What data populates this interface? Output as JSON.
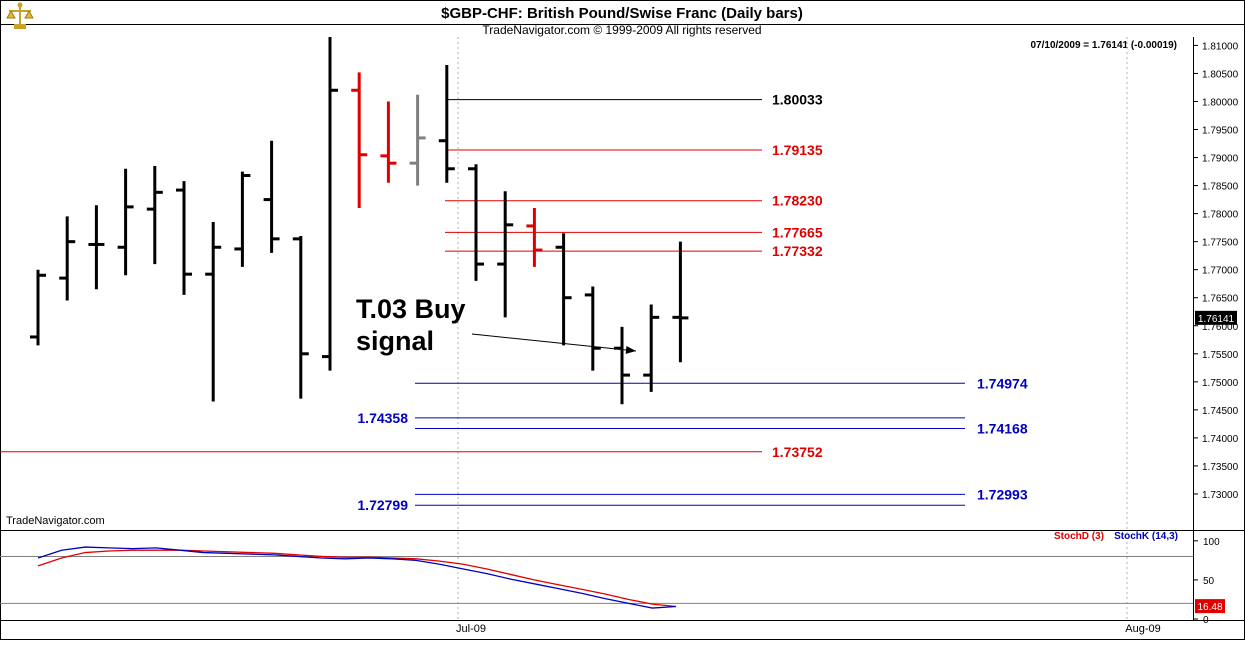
{
  "header": {
    "title": "$GBP-CHF:  British Pound/Swise Franc  (Daily bars)",
    "subtitle": "TradeNavigator.com © 1999-2009 All rights reserved",
    "readout": "07/10/2009 = 1.76141 (-0.00019)",
    "watermark": "TradeNavigator.com",
    "logo_icon": "trophy-scale-icon"
  },
  "colors": {
    "bar_black": "#000000",
    "bar_red": "#e00000",
    "bar_gray": "#808080",
    "level_red": "#e00000",
    "level_blue": "#0000c0",
    "stoch_d": "#e00000",
    "stoch_k": "#0000c0",
    "badge_red": "#e00000"
  },
  "chart_data": [
    {
      "type": "ohlc",
      "title": "$GBP-CHF:  British Pound/Swise Franc  (Daily bars)",
      "ylim": [
        1.725,
        1.8115
      ],
      "y_ticks": [
        "1.81000",
        "1.80500",
        "1.80000",
        "1.79500",
        "1.79000",
        "1.78500",
        "1.78000",
        "1.77500",
        "1.77000",
        "1.76500",
        "1.76000",
        "1.75500",
        "1.75000",
        "1.74500",
        "1.74000",
        "1.73500",
        "1.73000"
      ],
      "x_tick_labels": [
        "Jul-09",
        "Aug-09"
      ],
      "last_price_label": "1.76141",
      "bars": [
        {
          "o": 1.758,
          "h": 1.77,
          "l": 1.7565,
          "c": 1.769,
          "color": "black"
        },
        {
          "o": 1.7685,
          "h": 1.7795,
          "l": 1.7645,
          "c": 1.775,
          "color": "black"
        },
        {
          "o": 1.7745,
          "h": 1.7815,
          "l": 1.7665,
          "c": 1.7745,
          "color": "black"
        },
        {
          "o": 1.774,
          "h": 1.788,
          "l": 1.769,
          "c": 1.7812,
          "color": "black"
        },
        {
          "o": 1.7808,
          "h": 1.7885,
          "l": 1.771,
          "c": 1.7838,
          "color": "black"
        },
        {
          "o": 1.7842,
          "h": 1.7858,
          "l": 1.7655,
          "c": 1.7692,
          "color": "black"
        },
        {
          "o": 1.7692,
          "h": 1.7785,
          "l": 1.7465,
          "c": 1.774,
          "color": "black"
        },
        {
          "o": 1.7737,
          "h": 1.7875,
          "l": 1.7705,
          "c": 1.7868,
          "color": "black"
        },
        {
          "o": 1.7825,
          "h": 1.793,
          "l": 1.773,
          "c": 1.7755,
          "color": "black"
        },
        {
          "o": 1.7755,
          "h": 1.776,
          "l": 1.747,
          "c": 1.755,
          "color": "black"
        },
        {
          "o": 1.7545,
          "h": 1.8115,
          "l": 1.752,
          "c": 1.802,
          "color": "black"
        },
        {
          "o": 1.802,
          "h": 1.8052,
          "l": 1.781,
          "c": 1.7905,
          "color": "red"
        },
        {
          "o": 1.7903,
          "h": 1.8,
          "l": 1.7855,
          "c": 1.789,
          "color": "red"
        },
        {
          "o": 1.789,
          "h": 1.8012,
          "l": 1.785,
          "c": 1.7935,
          "color": "gray"
        },
        {
          "o": 1.793,
          "h": 1.8065,
          "l": 1.7855,
          "c": 1.788,
          "color": "black"
        },
        {
          "o": 1.788,
          "h": 1.7888,
          "l": 1.768,
          "c": 1.771,
          "color": "black"
        },
        {
          "o": 1.771,
          "h": 1.784,
          "l": 1.7615,
          "c": 1.778,
          "color": "black"
        },
        {
          "o": 1.7778,
          "h": 1.781,
          "l": 1.7705,
          "c": 1.7735,
          "color": "red"
        },
        {
          "o": 1.774,
          "h": 1.7765,
          "l": 1.7565,
          "c": 1.765,
          "color": "black"
        },
        {
          "o": 1.7655,
          "h": 1.767,
          "l": 1.752,
          "c": 1.756,
          "color": "black"
        },
        {
          "o": 1.756,
          "h": 1.7598,
          "l": 1.746,
          "c": 1.7512,
          "color": "black"
        },
        {
          "o": 1.7512,
          "h": 1.7638,
          "l": 1.7482,
          "c": 1.7615,
          "color": "black"
        },
        {
          "o": 1.7615,
          "h": 1.775,
          "l": 1.7535,
          "c": 1.7614,
          "color": "black"
        }
      ],
      "levels": [
        {
          "value": 1.80033,
          "label": "1.80033",
          "color": "black",
          "label_side": "right"
        },
        {
          "value": 1.79135,
          "label": "1.79135",
          "color": "red",
          "label_side": "right"
        },
        {
          "value": 1.7823,
          "label": "1.78230",
          "color": "red",
          "label_side": "right"
        },
        {
          "value": 1.77665,
          "label": "1.77665",
          "color": "red",
          "label_side": "right"
        },
        {
          "value": 1.77332,
          "label": "1.77332",
          "color": "red",
          "label_side": "right"
        },
        {
          "value": 1.74974,
          "label": "1.74974",
          "color": "blue",
          "label_side": "far"
        },
        {
          "value": 1.74358,
          "label": "1.74358",
          "color": "blue",
          "label_side": "left"
        },
        {
          "value": 1.74168,
          "label": "1.74168",
          "color": "blue",
          "label_side": "far"
        },
        {
          "value": 1.73752,
          "label": "1.73752",
          "color": "red",
          "label_side": "right"
        },
        {
          "value": 1.72993,
          "label": "1.72993",
          "color": "blue",
          "label_side": "far"
        },
        {
          "value": 1.72799,
          "label": "1.72799",
          "color": "blue",
          "label_side": "left"
        }
      ],
      "annotation": {
        "line1": "T.03 Buy",
        "line2": "signal",
        "arrow_target_bar": 20,
        "arrow_target_price": 1.7555
      }
    },
    {
      "type": "line",
      "ylim": [
        0,
        110
      ],
      "y_ticks": [
        "100",
        "50",
        "0"
      ],
      "ref_levels": [
        80,
        20
      ],
      "last_value_label": "16.48",
      "series": [
        {
          "name": "StochD (3)",
          "color": "red",
          "values": [
            68,
            78,
            85,
            87,
            88,
            88,
            88,
            87,
            86,
            85,
            84,
            82,
            80,
            79,
            79,
            78,
            77,
            74,
            70,
            64,
            57,
            50,
            44,
            38,
            32,
            25,
            19,
            16
          ]
        },
        {
          "name": "StochK (14,3)",
          "color": "blue",
          "values": [
            78,
            88,
            92,
            91,
            90,
            91,
            88,
            85,
            84,
            83,
            82,
            80,
            78,
            77,
            78,
            77,
            75,
            70,
            64,
            58,
            51,
            45,
            39,
            33,
            26,
            20,
            14,
            16
          ]
        }
      ]
    }
  ]
}
